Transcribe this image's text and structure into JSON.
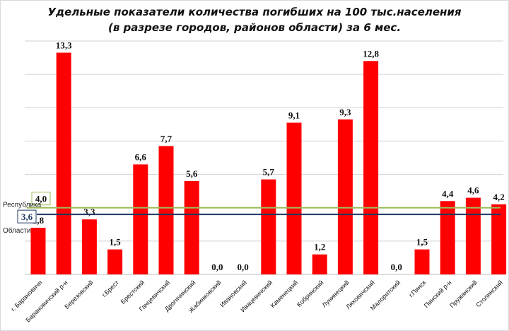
{
  "chart_data": {
    "type": "bar",
    "title": "Удельные показатели количества погибших на 100 тыс.населения",
    "subtitle": "(в разрезе городов, районов области) за 6 мес.",
    "categories": [
      "г. Барановичи",
      "Барановичский р-н",
      "Березовский",
      "г.Брест",
      "Брестский",
      "Ганцевичский",
      "Дрогичинский",
      "Жабинковский",
      "Ивановский",
      "Ивацевичский",
      "Каменецкий",
      "Кобринский",
      "Лунинецкий",
      "Ляховичский",
      "Малоритский",
      "г.Пинск",
      "Пинский р-н",
      "Пружанский",
      "Столинский"
    ],
    "values": [
      2.8,
      13.3,
      3.3,
      1.5,
      6.6,
      7.7,
      5.6,
      0.0,
      0.0,
      5.7,
      9.1,
      1.2,
      9.3,
      12.8,
      0.0,
      1.5,
      4.4,
      4.6,
      4.2
    ],
    "value_labels": [
      "2,8",
      "13,3",
      "3,3",
      "1,5",
      "6,6",
      "7,7",
      "5,6",
      "0,0",
      "0,0",
      "5,7",
      "9,1",
      "1,2",
      "9,3",
      "12,8",
      "0,0",
      "1,5",
      "4,4",
      "4,6",
      "4,2"
    ],
    "bar_color": "#ff0000",
    "ylim": [
      0,
      14
    ],
    "grid": true,
    "y_axis_ticks_shown": false,
    "reference_lines": [
      {
        "name": "Республика",
        "value": 4.0,
        "label": "4,0",
        "color": "#9bbb59"
      },
      {
        "name": "Области",
        "value": 3.6,
        "label": "3,6",
        "color": "#1f3864"
      }
    ]
  }
}
